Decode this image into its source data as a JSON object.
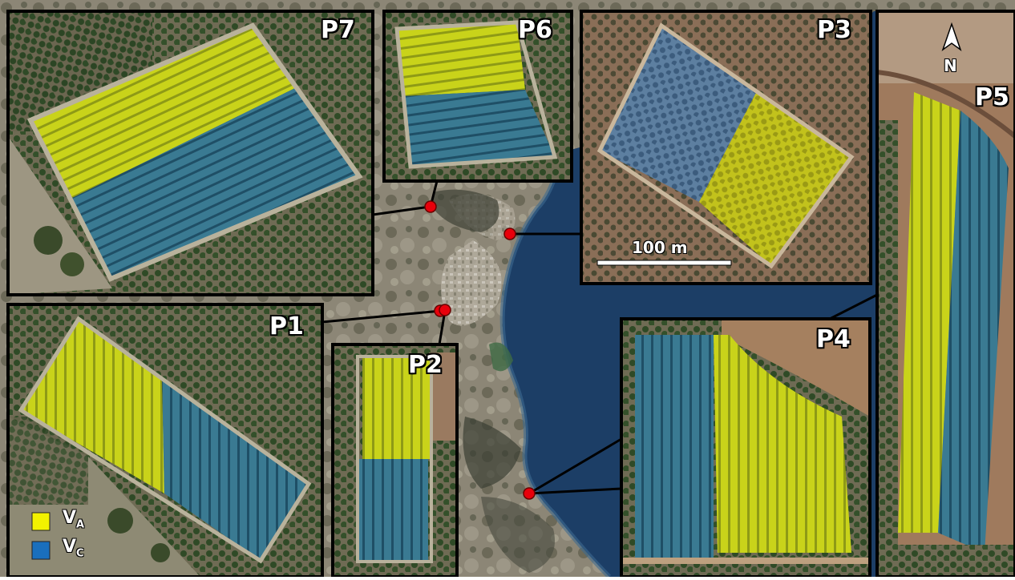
{
  "panels": {
    "p1": "P1",
    "p2": "P2",
    "p3": "P3",
    "p4": "P4",
    "p5": "P5",
    "p6": "P6",
    "p7": "P7"
  },
  "scale_bar": {
    "label": "100 m"
  },
  "north_arrow": {
    "letter": "N",
    "icon": "north-arrow-icon"
  },
  "legend": {
    "items": [
      {
        "main": "V",
        "sub": "A",
        "color": "#f2f200"
      },
      {
        "main": "V",
        "sub": "C",
        "color": "#1a6fbd"
      }
    ]
  },
  "colors": {
    "field_a": "#c7d61e",
    "field_c": "#2f6f8f",
    "location_marker": "#e8000b",
    "sea": "#1c3e66"
  }
}
